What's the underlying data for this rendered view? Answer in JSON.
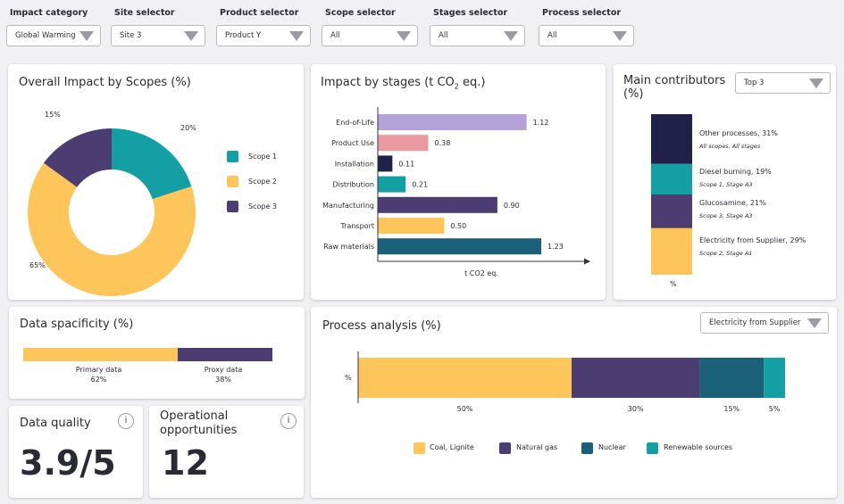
{
  "colors": {
    "scope1": "#139fa4",
    "scope2": "#fdc55a",
    "scope3": "#4b3c72",
    "lavender": "#b3a3d9",
    "pink": "#eb9aa0",
    "navy": "#20214b",
    "teal_dark": "#1a6079",
    "teal": "#139fa4"
  },
  "filters": [
    {
      "label": "Impact category",
      "value": "Global Warming"
    },
    {
      "label": "Site selector",
      "value": "Site 3"
    },
    {
      "label": "Product selector",
      "value": "Product Y"
    },
    {
      "label": "Scope selector",
      "value": "All"
    },
    {
      "label": "Stages selector",
      "value": "All"
    },
    {
      "label": "Process selector",
      "value": "All"
    }
  ],
  "scopes_card": {
    "title": "Overall Impact by Scopes (%)",
    "legend": [
      "Scope 1",
      "Scope 2",
      "Scope 3"
    ]
  },
  "stages_card": {
    "title_pre": "Impact by stages (t CO",
    "title_sub": "2",
    "title_post": " eq.)"
  },
  "contributors_card": {
    "title_line1": "Main contributors",
    "title_line2": "(%)",
    "dropdown": "Top 3",
    "axis_label": "%",
    "items": [
      {
        "label": "Other processes, 31%",
        "sub": "All scopes,  All stages"
      },
      {
        "label": "Diesel burning, 19%",
        "sub": "Scope 1, Stage A3"
      },
      {
        "label": "Glucosamine, 21%",
        "sub": "Scope 3, Stage A3"
      },
      {
        "label": "Electricity from Supplier, 29%",
        "sub": "Scope 2, Stage A1"
      }
    ]
  },
  "specificity_card": {
    "title": "Data spacificity (%)",
    "primary_label": "Primary data",
    "primary_value": "62%",
    "proxy_label": "Proxy data",
    "proxy_value": "38%"
  },
  "quality_card": {
    "title": "Data quality",
    "value": "3.9/5",
    "info": "i"
  },
  "opportunities_card": {
    "title_line1": "Operational",
    "title_line2": "opportunities",
    "value": "12",
    "info": "i"
  },
  "process_card": {
    "title": "Process analysis (%)",
    "dropdown": "Electricity from Supplier",
    "ylabel": "%",
    "legend": [
      "Coal, Lignite",
      "Natural gas",
      "Nuclear",
      "Renewable sources"
    ]
  },
  "chart_data": [
    {
      "type": "pie",
      "title": "Overall Impact by Scopes (%)",
      "labels": [
        "Scope 1",
        "Scope 2",
        "Scope 3"
      ],
      "values": [
        20,
        65,
        15
      ],
      "value_labels": [
        "20%",
        "65%",
        "15%"
      ],
      "donut": true
    },
    {
      "type": "bar",
      "orientation": "horizontal",
      "title": "Impact by stages (t CO2 eq.)",
      "categories": [
        "End-of-Life",
        "Product Use",
        "Installation",
        "Distribution",
        "Manufacturing",
        "Transport",
        "Raw materials"
      ],
      "values": [
        1.12,
        0.38,
        0.11,
        0.21,
        0.9,
        0.5,
        1.23
      ],
      "value_labels": [
        "1.12",
        "0.38",
        "0.11",
        "0.21",
        "0.90",
        "0.50",
        "1.23"
      ],
      "xlabel": "t CO2 eq."
    },
    {
      "type": "bar",
      "stacked": true,
      "title": "Main contributors (%)",
      "series": [
        {
          "name": "Other processes",
          "values": [
            31
          ]
        },
        {
          "name": "Diesel burning",
          "values": [
            19
          ]
        },
        {
          "name": "Glucosamine",
          "values": [
            21
          ]
        },
        {
          "name": "Electricity from Supplier",
          "values": [
            29
          ]
        }
      ],
      "xlabel": "%"
    },
    {
      "type": "bar",
      "stacked": true,
      "orientation": "horizontal",
      "title": "Data spacificity (%)",
      "series": [
        {
          "name": "Primary data",
          "values": [
            62
          ]
        },
        {
          "name": "Proxy data",
          "values": [
            38
          ]
        }
      ]
    },
    {
      "type": "bar",
      "stacked": true,
      "orientation": "horizontal",
      "title": "Process analysis (%)",
      "series": [
        {
          "name": "Coal, Lignite",
          "values": [
            50
          ]
        },
        {
          "name": "Natural gas",
          "values": [
            30
          ]
        },
        {
          "name": "Nuclear",
          "values": [
            15
          ]
        },
        {
          "name": "Renewable sources",
          "values": [
            5
          ]
        }
      ],
      "value_labels": [
        "50%",
        "30%",
        "15%",
        "5%"
      ],
      "ylabel": "%"
    }
  ]
}
